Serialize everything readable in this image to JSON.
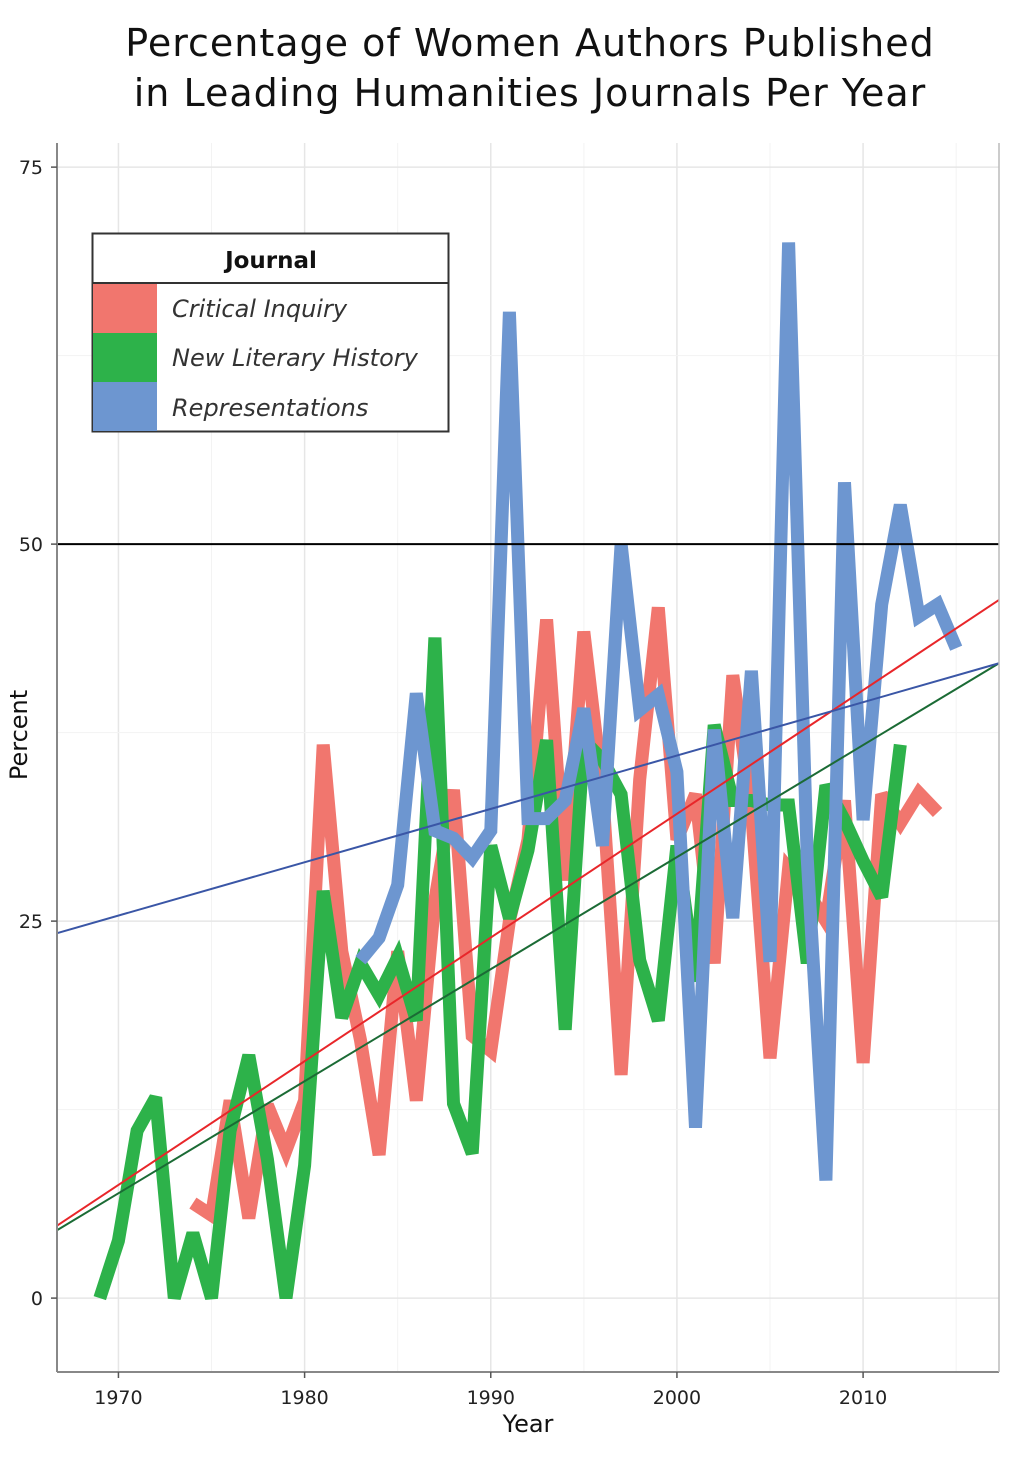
{
  "chart_data": {
    "type": "line",
    "title": "Percentage of Women Authors Published in Leading Humanities Journals Per Year",
    "title_lines": [
      "Percentage of Women Authors Published",
      "in Leading Humanities Journals Per Year"
    ],
    "xlabel": "Year",
    "ylabel": "Percent",
    "xlim": [
      1966.7,
      2017.3
    ],
    "ylim": [
      -4.9,
      76.6
    ],
    "xticks": [
      1970,
      1980,
      1990,
      2000,
      2010
    ],
    "yticks": [
      0,
      25,
      50,
      75
    ],
    "grid": true,
    "legend": {
      "title": "Journal",
      "placement": "top-left"
    },
    "reference_line": {
      "y": 50,
      "color": "#000000"
    },
    "series": [
      {
        "name": "Critical Inquiry",
        "color": "#F1766E",
        "trend_color": "#E8262A",
        "trend": [
          [
            1966.7,
            4.8
          ],
          [
            2017.3,
            46.3
          ]
        ],
        "x": [
          1974,
          1975,
          1976,
          1977,
          1978,
          1979,
          1980,
          1981,
          1982,
          1983,
          1984,
          1985,
          1986,
          1987,
          1988,
          1989,
          1990,
          1991,
          1992,
          1993,
          1994,
          1995,
          1996,
          1997,
          1998,
          1999,
          2000,
          2001,
          2002,
          2003,
          2004,
          2005,
          2006,
          2007,
          2008,
          2009,
          2010,
          2011,
          2012,
          2013,
          2014
        ],
        "y": [
          6.3,
          5.5,
          13.1,
          5.3,
          12.8,
          9.8,
          13.1,
          36.7,
          23,
          17.1,
          9.5,
          23,
          13.1,
          26.4,
          33.7,
          17.4,
          16.4,
          25,
          30.4,
          45,
          27.7,
          44.2,
          33.7,
          14.8,
          34.4,
          45.8,
          30.4,
          33.4,
          22.2,
          41.3,
          32.4,
          15.9,
          28.5,
          27,
          25,
          33,
          15.6,
          33.4,
          31.5,
          33.5,
          32.2
        ]
      },
      {
        "name": "New Literary History",
        "color": "#2DB24A",
        "trend_color": "#1B6B35",
        "trend": [
          [
            1966.7,
            4.5
          ],
          [
            2017.3,
            42.1
          ]
        ],
        "x": [
          1969,
          1970,
          1971,
          1972,
          1973,
          1974,
          1975,
          1976,
          1977,
          1978,
          1979,
          1980,
          1981,
          1982,
          1983,
          1984,
          1985,
          1986,
          1987,
          1988,
          1989,
          1990,
          1991,
          1992,
          1993,
          1994,
          1995,
          1996,
          1997,
          1998,
          1999,
          2000,
          2001,
          2002,
          2003,
          2004,
          2005,
          2006,
          2007,
          2008,
          2009,
          2010,
          2011,
          2012
        ],
        "y": [
          0,
          3.8,
          11.1,
          13.3,
          0,
          4.3,
          0,
          11.1,
          16.1,
          9.2,
          0,
          8.8,
          27,
          18.6,
          22.2,
          20.1,
          22.6,
          18.4,
          43.8,
          12.9,
          9.6,
          30,
          25.2,
          29.7,
          37,
          17.8,
          37,
          35.7,
          33.4,
          22.4,
          18.4,
          30,
          21,
          38,
          33,
          33,
          32.7,
          32.7,
          22.2,
          34,
          31.7,
          29,
          26.6,
          36.7
        ]
      },
      {
        "name": "Representations",
        "color": "#6D96D0",
        "trend_color": "#3A56A6",
        "trend": [
          [
            1966.7,
            24.2
          ],
          [
            2017.3,
            42.1
          ]
        ],
        "x": [
          1983,
          1984,
          1985,
          1986,
          1987,
          1988,
          1989,
          1990,
          1991,
          1992,
          1993,
          1994,
          1995,
          1996,
          1997,
          1998,
          1999,
          2000,
          2001,
          2002,
          2003,
          2004,
          2005,
          2006,
          2007,
          2008,
          2009,
          2010,
          2011,
          2012,
          2013,
          2014,
          2015
        ],
        "y": [
          22.4,
          23.9,
          27.4,
          40.1,
          31,
          30.5,
          29.2,
          31,
          65.4,
          31.8,
          31.8,
          33,
          39.1,
          30,
          50,
          39,
          40,
          34.9,
          11.3,
          37.7,
          25.2,
          41.6,
          22.3,
          70,
          29.2,
          7.8,
          54.1,
          31.7,
          46,
          52.6,
          45.2,
          46,
          43.1
        ]
      }
    ]
  }
}
